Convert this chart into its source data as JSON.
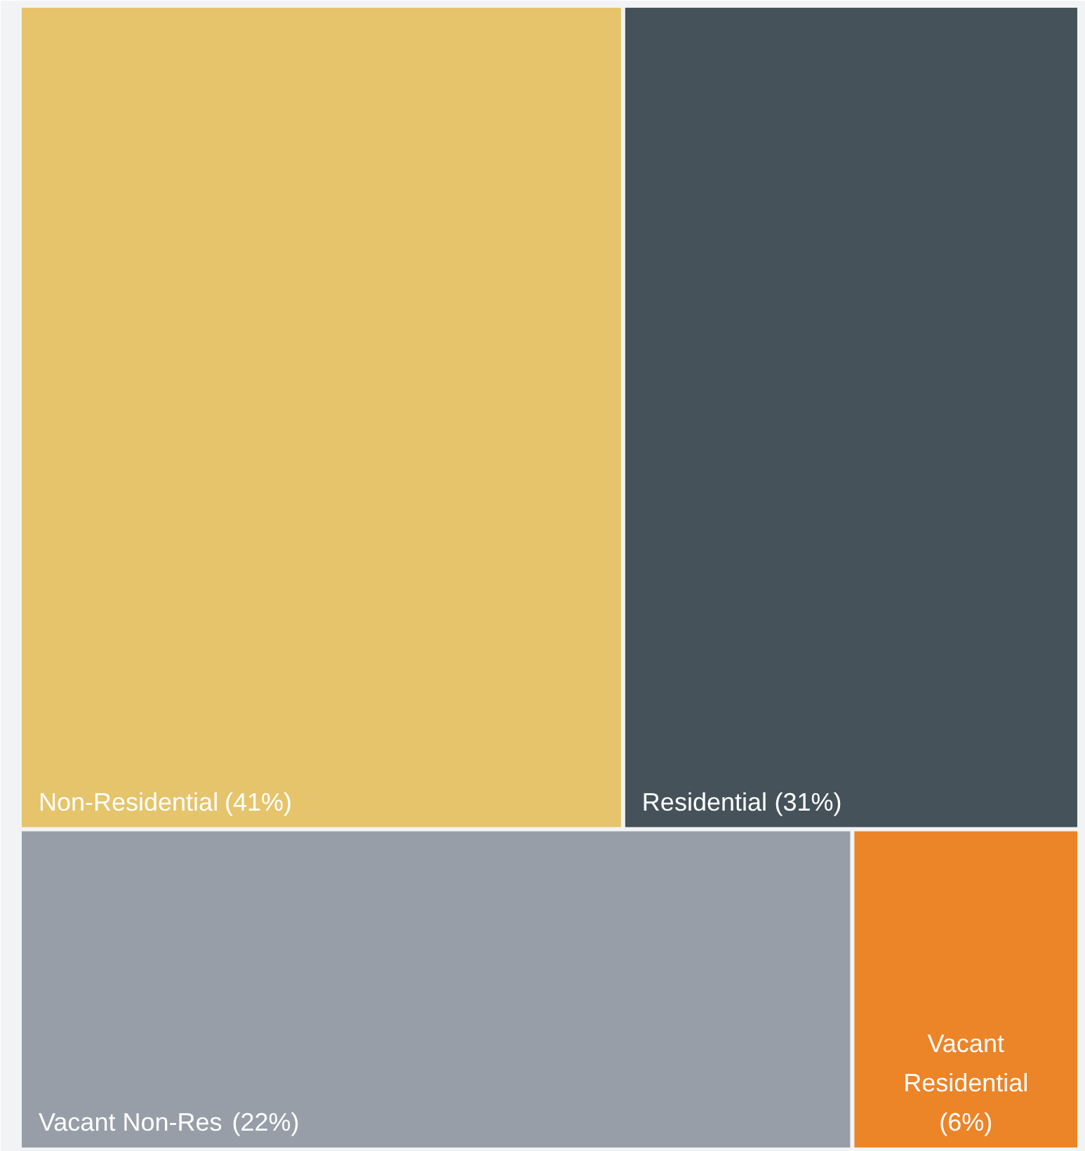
{
  "chart_data": {
    "type": "other",
    "categories": [
      "Non-Residential",
      "Residential",
      "Vacant Non-Res",
      "Vacant Residential"
    ],
    "values": [
      41,
      31,
      22,
      6
    ],
    "value_labels": [
      "(41%)",
      "(31%)",
      "(22%)",
      "(6%)"
    ],
    "colors": [
      "#e5c46b",
      "#46525a",
      "#979ea8",
      "#ec8428"
    ]
  }
}
